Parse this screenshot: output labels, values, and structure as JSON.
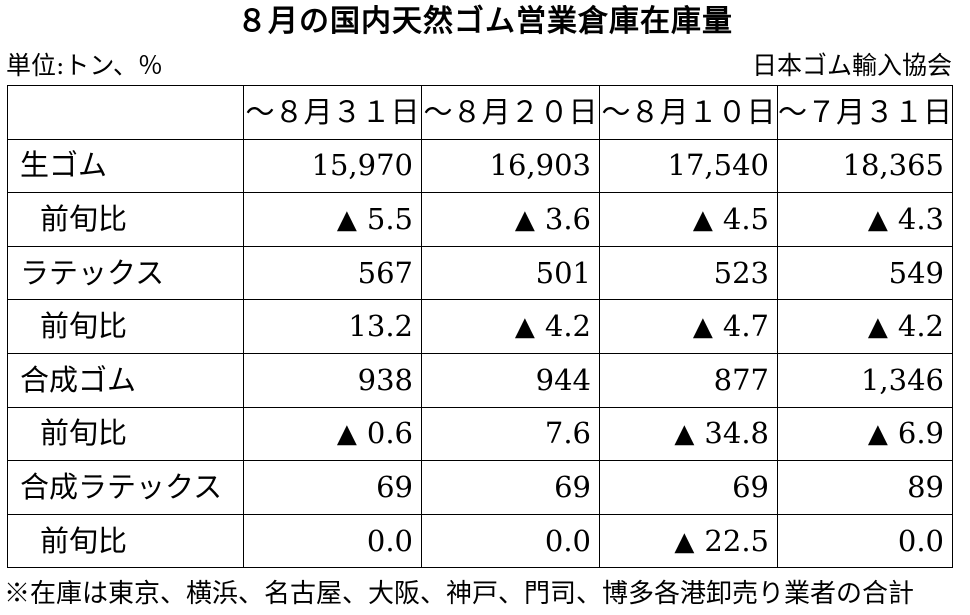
{
  "title": "８月の国内天然ゴム営業倉庫在庫量",
  "unit_label": "単位:トン、％",
  "source_label": "日本ゴム輸入協会",
  "columns": [
    "～８月３１日",
    "～８月２０日",
    "～８月１０日",
    "～７月３１日"
  ],
  "rows": [
    {
      "label": "生ゴム",
      "sub": false,
      "cells": [
        {
          "mark": "",
          "value": "15,970"
        },
        {
          "mark": "",
          "value": "16,903"
        },
        {
          "mark": "",
          "value": "17,540"
        },
        {
          "mark": "",
          "value": "18,365"
        }
      ]
    },
    {
      "label": "前旬比",
      "sub": true,
      "cells": [
        {
          "mark": "▲",
          "value": "5.5"
        },
        {
          "mark": "▲",
          "value": "3.6"
        },
        {
          "mark": "▲",
          "value": "4.5"
        },
        {
          "mark": "▲",
          "value": "4.3"
        }
      ]
    },
    {
      "label": "ラテックス",
      "sub": false,
      "cells": [
        {
          "mark": "",
          "value": "567"
        },
        {
          "mark": "",
          "value": "501"
        },
        {
          "mark": "",
          "value": "523"
        },
        {
          "mark": "",
          "value": "549"
        }
      ]
    },
    {
      "label": "前旬比",
      "sub": true,
      "cells": [
        {
          "mark": "",
          "value": "13.2"
        },
        {
          "mark": "▲",
          "value": "4.2"
        },
        {
          "mark": "▲",
          "value": "4.7"
        },
        {
          "mark": "▲",
          "value": "4.2"
        }
      ]
    },
    {
      "label": "合成ゴム",
      "sub": false,
      "cells": [
        {
          "mark": "",
          "value": "938"
        },
        {
          "mark": "",
          "value": "944"
        },
        {
          "mark": "",
          "value": "877"
        },
        {
          "mark": "",
          "value": "1,346"
        }
      ]
    },
    {
      "label": "前旬比",
      "sub": true,
      "cells": [
        {
          "mark": "▲",
          "value": "0.6"
        },
        {
          "mark": "",
          "value": "7.6"
        },
        {
          "mark": "▲",
          "value": "34.8"
        },
        {
          "mark": "▲",
          "value": "6.9"
        }
      ]
    },
    {
      "label": "合成ラテックス",
      "sub": false,
      "cells": [
        {
          "mark": "",
          "value": "69"
        },
        {
          "mark": "",
          "value": "69"
        },
        {
          "mark": "",
          "value": "69"
        },
        {
          "mark": "",
          "value": "89"
        }
      ]
    },
    {
      "label": "前旬比",
      "sub": true,
      "cells": [
        {
          "mark": "",
          "value": "0.0"
        },
        {
          "mark": "",
          "value": "0.0"
        },
        {
          "mark": "▲",
          "value": "22.5"
        },
        {
          "mark": "",
          "value": "0.0"
        }
      ]
    }
  ],
  "footnote": "※在庫は東京、横浜、名古屋、大阪、神戸、門司、博多各港卸売り業者の合計"
}
